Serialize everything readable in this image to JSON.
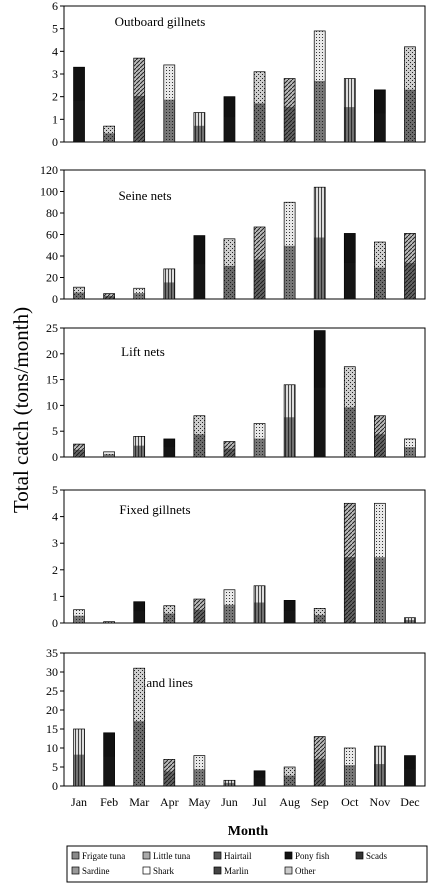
{
  "figure": {
    "ylabel": "Total catch (tons/month)",
    "xlabel": "Month",
    "months": [
      "Jan",
      "Feb",
      "Mar",
      "Apr",
      "May",
      "Jun",
      "Jul",
      "Aug",
      "Sep",
      "Oct",
      "Nov",
      "Dec"
    ]
  },
  "legend": [
    {
      "name": "Frigate tuna",
      "color": "#888888"
    },
    {
      "name": "Little tuna",
      "color": "#aaaaaa"
    },
    {
      "name": "Hairtail",
      "color": "#555555"
    },
    {
      "name": "Pony fish",
      "color": "#111111"
    },
    {
      "name": "Scads",
      "color": "#333333"
    },
    {
      "name": "Sardine",
      "color": "#999999"
    },
    {
      "name": "Shark",
      "color": "#ffffff"
    },
    {
      "name": "Marlin",
      "color": "#444444"
    },
    {
      "name": "Other",
      "color": "#cccccc"
    }
  ],
  "chart_data": [
    {
      "type": "bar",
      "title": "Outboard gillnets",
      "categories": [
        "Jan",
        "Feb",
        "Mar",
        "Apr",
        "May",
        "Jun",
        "Jul",
        "Aug",
        "Sep",
        "Oct",
        "Nov",
        "Dec"
      ],
      "values": [
        3.3,
        0.7,
        3.7,
        3.4,
        1.3,
        2.0,
        3.1,
        2.8,
        4.9,
        2.8,
        2.3,
        4.2
      ],
      "ylim": [
        0,
        6
      ],
      "yticks": [
        0,
        1,
        2,
        3,
        4,
        5,
        6
      ]
    },
    {
      "type": "bar",
      "title": "Seine nets",
      "categories": [
        "Jan",
        "Feb",
        "Mar",
        "Apr",
        "May",
        "Jun",
        "Jul",
        "Aug",
        "Sep",
        "Oct",
        "Nov",
        "Dec"
      ],
      "values": [
        11,
        5,
        10,
        28,
        59,
        56,
        67,
        90,
        104,
        61,
        53,
        61
      ],
      "ylim": [
        0,
        120
      ],
      "yticks": [
        0,
        20,
        40,
        60,
        80,
        100,
        120
      ]
    },
    {
      "type": "bar",
      "title": "Lift nets",
      "categories": [
        "Jan",
        "Feb",
        "Mar",
        "Apr",
        "May",
        "Jun",
        "Jul",
        "Aug",
        "Sep",
        "Oct",
        "Nov",
        "Dec"
      ],
      "values": [
        2.5,
        1.0,
        4.0,
        3.5,
        8.0,
        3.0,
        6.5,
        14.0,
        24.5,
        17.5,
        8.0,
        3.5
      ],
      "ylim": [
        0,
        25
      ],
      "yticks": [
        0,
        5,
        10,
        15,
        20,
        25
      ]
    },
    {
      "type": "bar",
      "title": "Fixed gillnets",
      "categories": [
        "Jan",
        "Feb",
        "Mar",
        "Apr",
        "May",
        "Jun",
        "Jul",
        "Aug",
        "Sep",
        "Oct",
        "Nov",
        "Dec"
      ],
      "values": [
        0.5,
        0.05,
        0.8,
        0.65,
        0.9,
        1.25,
        1.4,
        0.85,
        0.55,
        4.5,
        4.5,
        0.2
      ],
      "ylim": [
        0,
        5
      ],
      "yticks": [
        0,
        1,
        2,
        3,
        4,
        5
      ]
    },
    {
      "type": "bar",
      "title": "Hand lines",
      "categories": [
        "Jan",
        "Feb",
        "Mar",
        "Apr",
        "May",
        "Jun",
        "Jul",
        "Aug",
        "Sep",
        "Oct",
        "Nov",
        "Dec"
      ],
      "values": [
        15,
        14,
        31,
        7,
        8,
        1.5,
        4,
        5,
        13,
        10,
        10.5,
        8
      ],
      "ylim": [
        0,
        35
      ],
      "yticks": [
        0,
        5,
        10,
        15,
        20,
        25,
        30,
        35
      ]
    }
  ]
}
